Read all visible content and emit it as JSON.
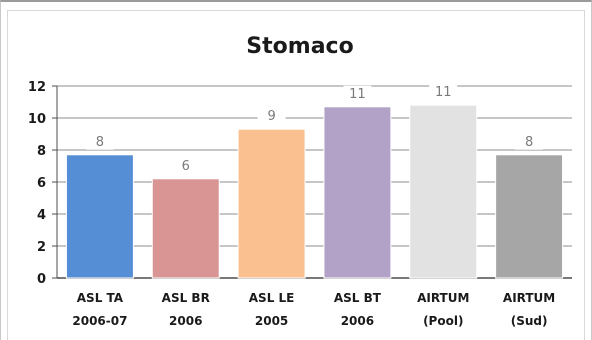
{
  "chart_data": {
    "type": "bar",
    "title": "Stomaco",
    "categories": [
      [
        "ASL TA",
        "2006-07"
      ],
      [
        "ASL BR",
        "2006"
      ],
      [
        "ASL LE",
        "2005"
      ],
      [
        "ASL BT",
        "2006"
      ],
      [
        "AIRTUM",
        "(Pool)"
      ],
      [
        "AIRTUM",
        "(Sud)"
      ]
    ],
    "values": [
      7.7,
      6.2,
      9.3,
      10.7,
      10.8,
      7.7
    ],
    "data_labels": [
      "8",
      "6",
      "9",
      "11",
      "11",
      "8"
    ],
    "colors": [
      "#558ed5",
      "#d99594",
      "#fac090",
      "#b3a2c7",
      "#e2e2e2",
      "#a6a6a6"
    ],
    "ylim": [
      0,
      12
    ],
    "yticks": [
      "0",
      "2",
      "4",
      "6",
      "8",
      "10",
      "12"
    ],
    "grid": true,
    "xlabel": "",
    "ylabel": ""
  }
}
